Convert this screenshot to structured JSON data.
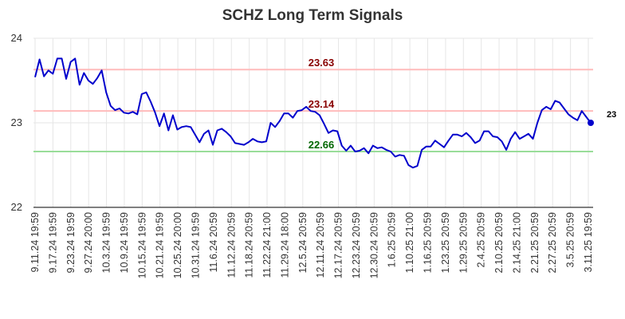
{
  "chart_data": {
    "type": "line",
    "title": "SCHZ Long Term Signals",
    "xlabel": "",
    "ylabel": "",
    "ylim": [
      22,
      24
    ],
    "yticks": [
      "22",
      "23",
      "24"
    ],
    "grid": true,
    "x_tick_labels": [
      "9.11.24 19:59",
      "9.17.24 19:59",
      "9.23.24 19:59",
      "9.27.24 20:00",
      "10.3.24 19:59",
      "10.9.24 19:59",
      "10.15.24 19:59",
      "10.21.24 19:59",
      "10.25.24 20:00",
      "10.31.24 19:59",
      "11.6.24 20:59",
      "11.12.24 20:59",
      "11.18.24 20:59",
      "11.22.24 21:00",
      "11.29.24 18:00",
      "12.5.24 20:59",
      "12.11.24 20:59",
      "12.17.24 20:59",
      "12.23.24 20:59",
      "12.30.24 20:59",
      "1.6.25 20:59",
      "1.10.25 21:00",
      "1.16.25 20:59",
      "1.23.25 20:59",
      "1.29.25 20:59",
      "2.4.25 20:59",
      "2.10.25 20:59",
      "2.14.25 21:00",
      "2.21.25 20:59",
      "2.27.25 20:59",
      "3.5.25 20:59",
      "3.11.25 19:59"
    ],
    "series": [
      {
        "color": "#0000cc",
        "values": [
          23.54,
          23.75,
          23.55,
          23.62,
          23.58,
          23.76,
          23.76,
          23.52,
          23.72,
          23.76,
          23.45,
          23.59,
          23.5,
          23.46,
          23.53,
          23.62,
          23.36,
          23.2,
          23.15,
          23.17,
          23.12,
          23.11,
          23.13,
          23.1,
          23.34,
          23.36,
          23.25,
          23.12,
          22.96,
          23.11,
          22.91,
          23.09,
          22.92,
          22.95,
          22.96,
          22.95,
          22.86,
          22.77,
          22.87,
          22.91,
          22.74,
          22.91,
          22.93,
          22.89,
          22.84,
          22.76,
          22.75,
          22.74,
          22.77,
          22.81,
          22.78,
          22.77,
          22.78,
          23.0,
          22.95,
          23.02,
          23.11,
          23.11,
          23.06,
          23.14,
          23.15,
          23.19,
          23.14,
          23.13,
          23.09,
          22.99,
          22.88,
          22.91,
          22.9,
          22.73,
          22.67,
          22.73,
          22.66,
          22.67,
          22.7,
          22.64,
          22.73,
          22.7,
          22.71,
          22.68,
          22.66,
          22.6,
          22.62,
          22.61,
          22.5,
          22.47,
          22.49,
          22.68,
          22.72,
          22.72,
          22.79,
          22.75,
          22.71,
          22.79,
          22.86,
          22.86,
          22.84,
          22.88,
          22.83,
          22.76,
          22.79,
          22.9,
          22.9,
          22.84,
          22.83,
          22.78,
          22.68,
          22.81,
          22.89,
          22.81,
          22.84,
          22.87,
          22.81,
          23.0,
          23.15,
          23.19,
          23.16,
          23.26,
          23.24,
          23.17,
          23.1,
          23.06,
          23.03,
          23.14,
          23.07,
          23.0
        ]
      }
    ],
    "horizontal_lines": [
      {
        "value": 23.63,
        "label": "23.63",
        "line_color": "#ffbbbb",
        "label_color": "#880000"
      },
      {
        "value": 23.14,
        "label": "23.14",
        "line_color": "#ffbbbb",
        "label_color": "#880000"
      },
      {
        "value": 22.66,
        "label": "22.66",
        "line_color": "#99dd99",
        "label_color": "#006600"
      }
    ],
    "last_value_label": "23"
  }
}
